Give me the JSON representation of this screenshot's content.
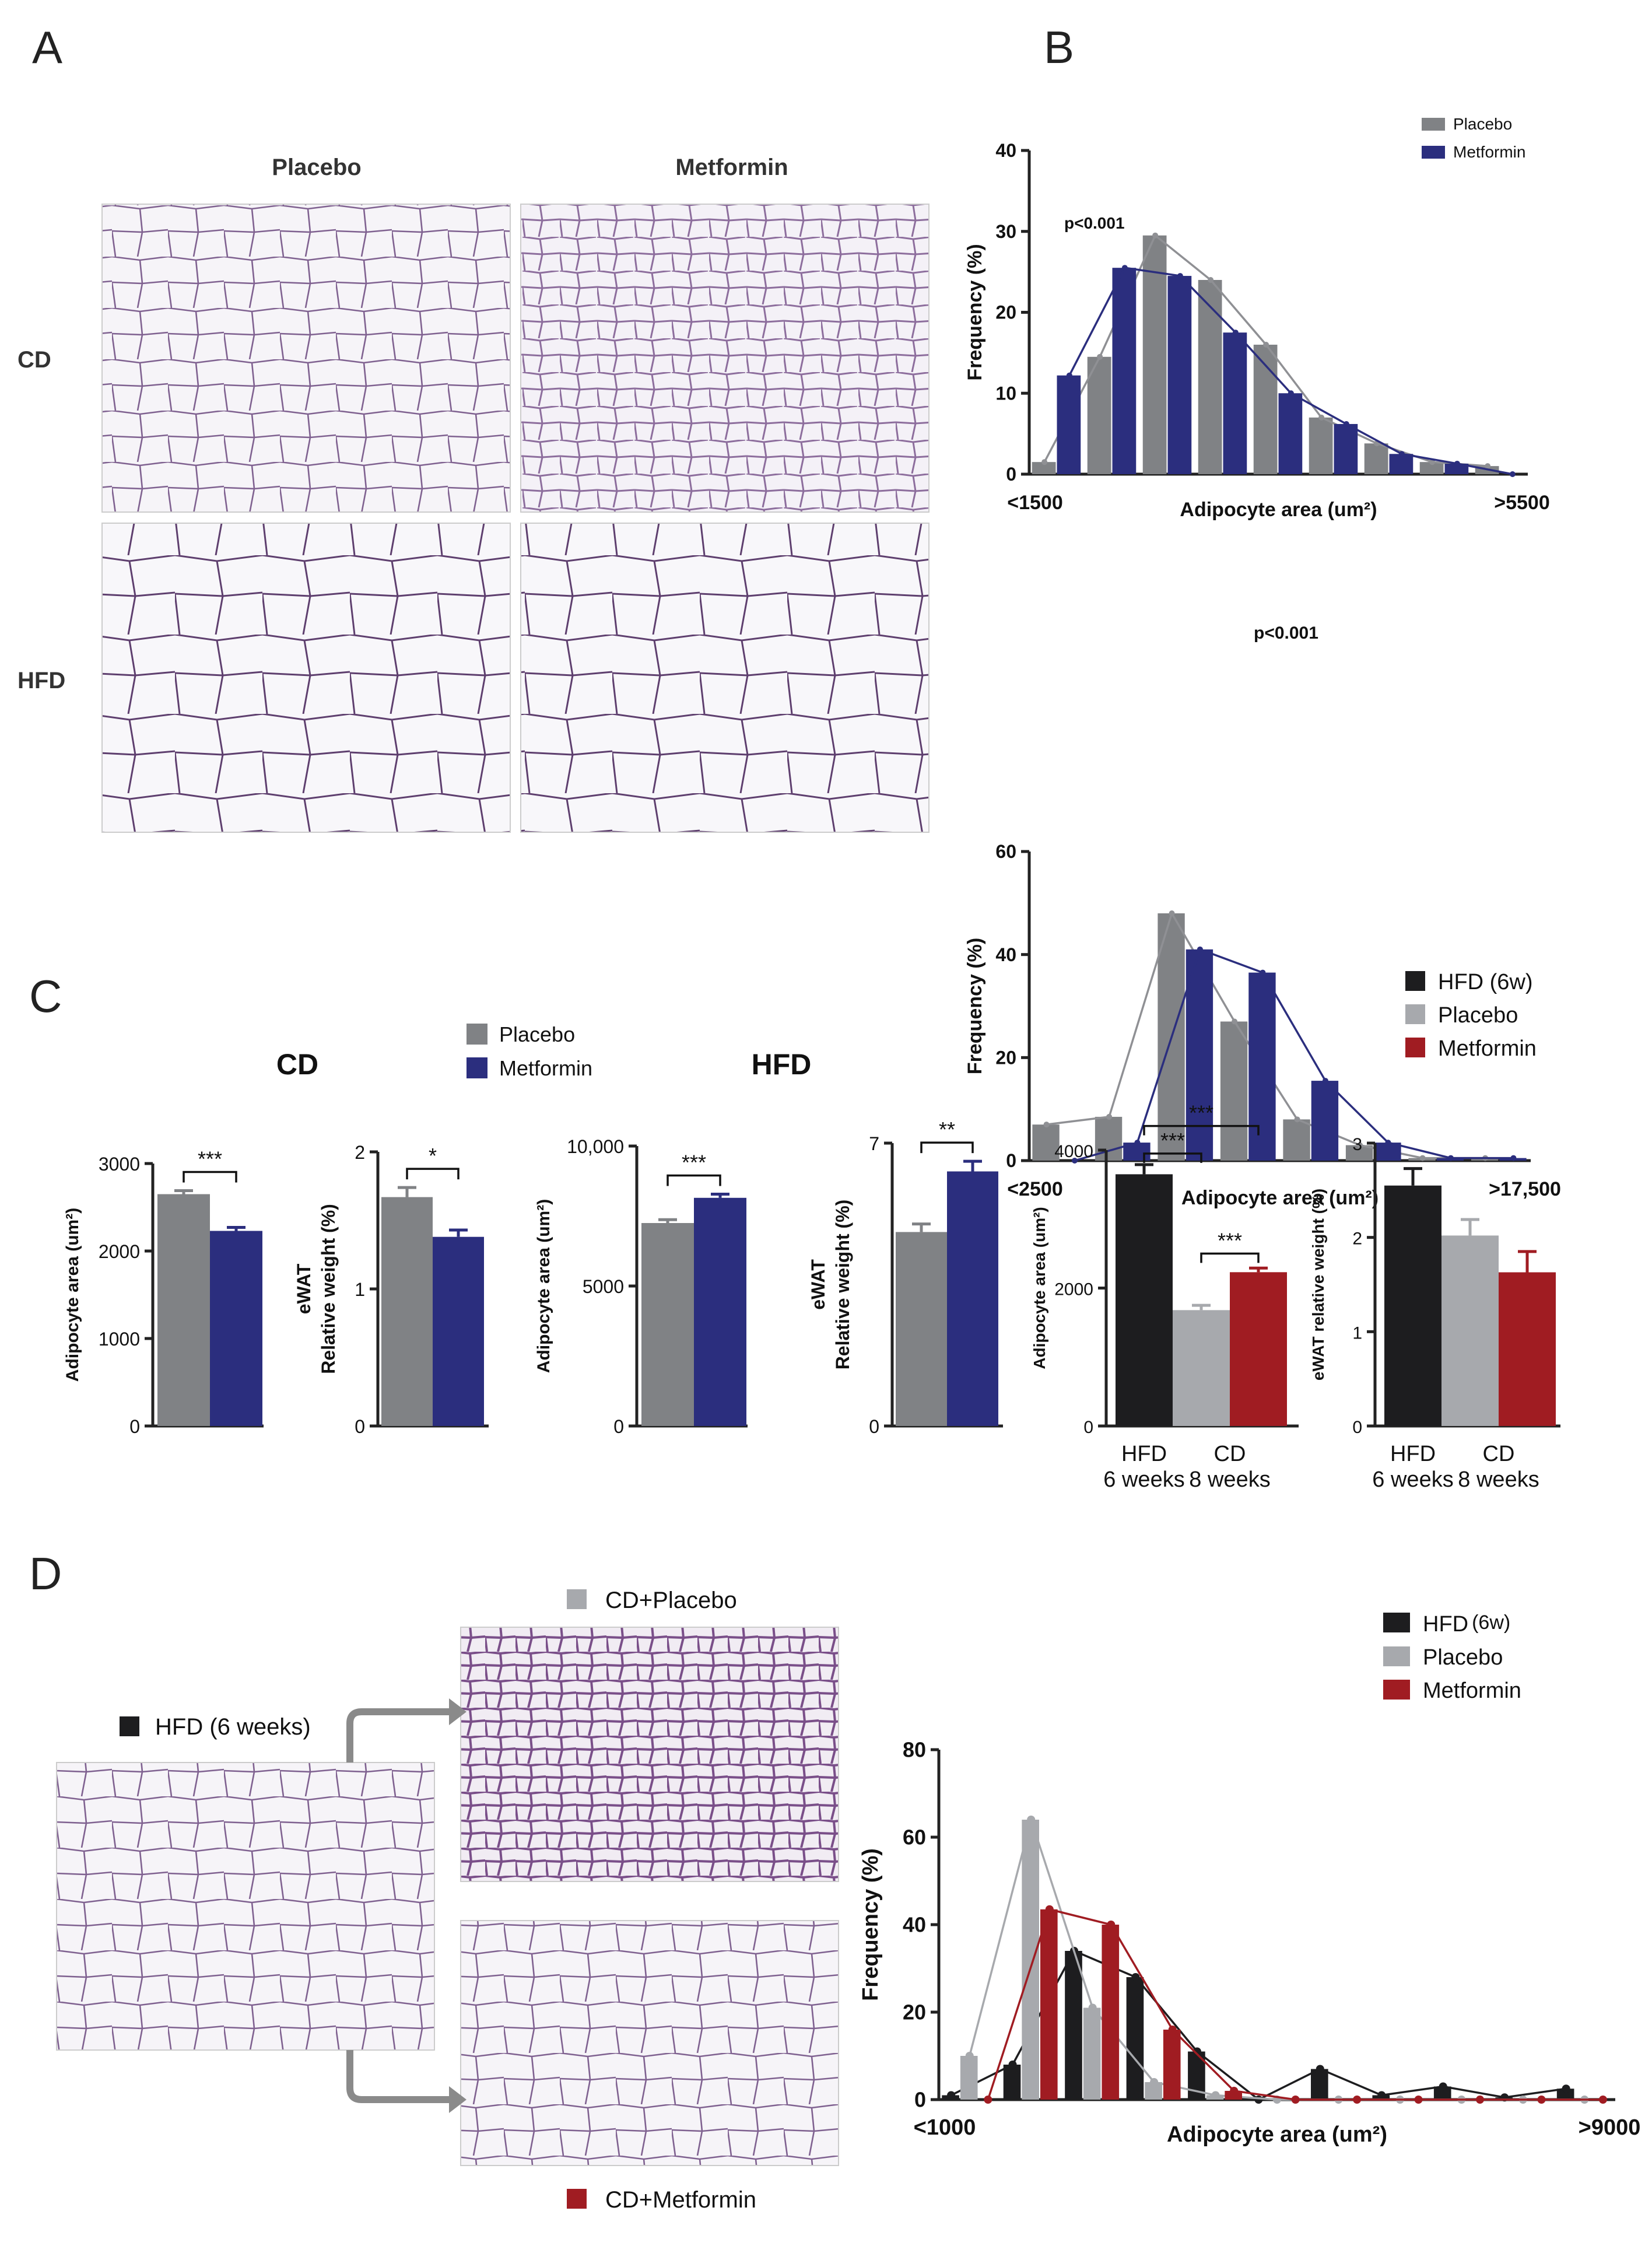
{
  "panels": {
    "a": "A",
    "b": "B",
    "c": "C",
    "d": "D"
  },
  "panel_a": {
    "col_placebo": "Placebo",
    "col_metformin": "Metformin",
    "row_cd": "CD",
    "row_hfd": "HFD"
  },
  "panel_c": {
    "title_cd": "CD",
    "title_hfd": "HFD",
    "legend_placebo": "Placebo",
    "legend_metformin": "Metformin",
    "legend2_hfd": "HFD (6w)",
    "legend2_placebo": "Placebo",
    "legend2_metformin": "Metformin"
  },
  "panel_d": {
    "label_hfd_img": "HFD (6 weeks)",
    "label_placebo_img": "CD+Placebo",
    "label_metformin_img": "CD+Metformin",
    "legend_hfd": "HFD",
    "legend_hfd_sup": "(6w)",
    "legend_placebo": "Placebo",
    "legend_metformin": "Metformin"
  },
  "colors": {
    "placebo": "#808285",
    "metformin": "#2b2e7e",
    "hfd": "#1d1d1f",
    "placebo_light": "#a7a9ad",
    "metformin_red": "#a01c22",
    "tissue_bg": "#f3f0f6",
    "membrane": "#8a6a99"
  },
  "chart_data": [
    {
      "id": "b_top",
      "type": "bar",
      "legend": [
        "Placebo",
        "Metformin"
      ],
      "xlabel": "Adipocyte area (um²)",
      "ylabel": "Frequency (%)",
      "x_first_label": "<1500",
      "x_last_label": ">5500",
      "ylim": [
        0,
        40
      ],
      "yticks": [
        0,
        10,
        20,
        30,
        40
      ],
      "annotation": "p<0.001",
      "series": [
        {
          "name": "Placebo",
          "values": [
            1.5,
            14.5,
            29.5,
            24,
            16,
            7,
            3.8,
            1.5,
            1
          ]
        },
        {
          "name": "Metformin",
          "values": [
            12.2,
            25.5,
            24.5,
            17.5,
            10,
            6.2,
            2.5,
            1.3,
            0
          ]
        }
      ]
    },
    {
      "id": "b_bottom",
      "type": "bar",
      "xlabel": "Adipocyte area (um²)",
      "ylabel": "Frequency (%)",
      "x_first_label": "<2500",
      "x_last_label": ">17,500",
      "ylim": [
        0,
        60
      ],
      "yticks": [
        0,
        20,
        40,
        60
      ],
      "annotation": "p<0.001",
      "series": [
        {
          "name": "Placebo",
          "values": [
            7,
            8.5,
            48,
            27,
            8,
            3,
            0.5,
            0.5
          ]
        },
        {
          "name": "Metformin",
          "values": [
            0,
            3.5,
            41,
            36.5,
            15.5,
            3.5,
            0.5,
            0.5
          ]
        }
      ]
    },
    {
      "id": "c1",
      "type": "bar",
      "ylabel": "Adipocyte area (um²)",
      "ylim": [
        0,
        3000
      ],
      "yticks": [
        0,
        1000,
        2000,
        3000
      ],
      "ytick_labels": [
        "0",
        "1000",
        "2000",
        "3000"
      ],
      "categories": [
        "Placebo",
        "Metformin"
      ],
      "values": [
        2650,
        2230
      ],
      "errors": [
        40,
        40
      ],
      "significance": "***"
    },
    {
      "id": "c2",
      "type": "bar",
      "ylabel": "Relative weight (%)",
      "ylabel_top": "eWAT",
      "ylim": [
        0,
        2
      ],
      "yticks": [
        0,
        1,
        2
      ],
      "ytick_labels": [
        "0",
        "1",
        "2"
      ],
      "categories": [
        "Placebo",
        "Metformin"
      ],
      "values": [
        1.67,
        1.38
      ],
      "errors": [
        0.07,
        0.05
      ],
      "significance": "*"
    },
    {
      "id": "c3",
      "type": "bar",
      "ylabel": "Adipocyte area (um²)",
      "ylim": [
        0,
        10000
      ],
      "yticks": [
        0,
        5000,
        10000
      ],
      "ytick_labels": [
        "0",
        "5000",
        "10,000"
      ],
      "categories": [
        "Placebo",
        "Metformin"
      ],
      "values": [
        7250,
        8150
      ],
      "errors": [
        120,
        130
      ],
      "significance": "***"
    },
    {
      "id": "c4",
      "type": "bar",
      "ylabel": "Relative weight (%)",
      "ylabel_top": "eWAT",
      "ylim": [
        0,
        7
      ],
      "yticks": [
        0,
        7
      ],
      "ytick_labels": [
        "0",
        "7"
      ],
      "categories": [
        "Placebo",
        "Metformin"
      ],
      "values": [
        4.8,
        6.3
      ],
      "errors": [
        0.2,
        0.25
      ],
      "significance": "**"
    },
    {
      "id": "c5",
      "type": "bar",
      "ylabel": "Adipocyte area (um²)",
      "ylim": [
        0,
        4000
      ],
      "yticks": [
        0,
        2000,
        4000
      ],
      "ytick_labels": [
        "0",
        "2000",
        "4000"
      ],
      "categories": [
        "HFD",
        "Placebo",
        "Metformin"
      ],
      "values": [
        3650,
        1680,
        2230
      ],
      "errors": [
        140,
        70,
        60
      ],
      "group_labels": [
        [
          "HFD",
          "6 weeks"
        ],
        [
          "CD",
          "8 weeks"
        ]
      ],
      "sig": [
        "***",
        "***",
        "***"
      ]
    },
    {
      "id": "c6",
      "type": "bar",
      "ylabel": "eWAT relative weight (%)",
      "ylim": [
        0,
        3
      ],
      "yticks": [
        0,
        1,
        2,
        3
      ],
      "ytick_labels": [
        "0",
        "1",
        "2",
        "3"
      ],
      "categories": [
        "HFD",
        "Placebo",
        "Metformin"
      ],
      "values": [
        2.55,
        2.02,
        1.63
      ],
      "errors": [
        0.18,
        0.17,
        0.22
      ],
      "group_labels": [
        [
          "HFD",
          "6 weeks"
        ],
        [
          "CD",
          "8 weeks"
        ]
      ],
      "sig": [
        "*",
        "*"
      ]
    },
    {
      "id": "d",
      "type": "bar",
      "xlabel": "Adipocyte area (um²)",
      "ylabel": "Frequency (%)",
      "x_first_label": "<1000",
      "x_last_label": ">9000",
      "ylim": [
        0,
        80
      ],
      "yticks": [
        0,
        20,
        40,
        60,
        80
      ],
      "series": [
        {
          "name": "HFD (6w)",
          "values": [
            1,
            8,
            34,
            28,
            11,
            0,
            7,
            1,
            3,
            0.5,
            2.5
          ]
        },
        {
          "name": "Placebo",
          "values": [
            10,
            64,
            21,
            4,
            1,
            0,
            0,
            0,
            0,
            0,
            0
          ]
        },
        {
          "name": "Metformin",
          "values": [
            0,
            43.5,
            40,
            16,
            2,
            0,
            0,
            0,
            0,
            0,
            0
          ]
        }
      ]
    }
  ]
}
